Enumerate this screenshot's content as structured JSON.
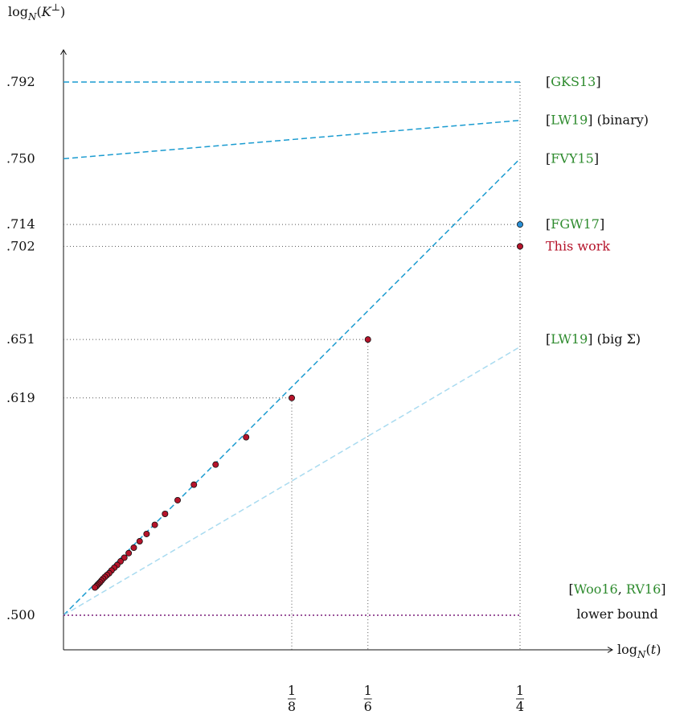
{
  "chart_data": {
    "type": "line",
    "ylabel": "log_N(K⊥)",
    "xlabel": "log_N(t)",
    "ylim": [
      0.5,
      0.792
    ],
    "xlim": [
      0,
      0.25
    ],
    "y_ticks": [
      ".792",
      ".750",
      ".714",
      ".702",
      ".651",
      ".619",
      ".500"
    ],
    "x_ticks": [
      {
        "value": 0.125,
        "num": "1",
        "den": "8"
      },
      {
        "value": 0.1667,
        "num": "1",
        "den": "6"
      },
      {
        "value": 0.25,
        "num": "1",
        "den": "4"
      }
    ],
    "series": [
      {
        "label": "[GKS13]",
        "kind": "dashed",
        "color": "#1a9bd0",
        "x": [
          0,
          0.25
        ],
        "y": [
          0.792,
          0.792
        ]
      },
      {
        "label": "[LW19]",
        "label_suffix": " (binary)",
        "kind": "dashed",
        "color": "#1a9bd0",
        "x": [
          0,
          0.25
        ],
        "y": [
          0.75,
          0.771
        ]
      },
      {
        "label": "[FVY15]",
        "kind": "dashed",
        "color": "#1a9bd0",
        "x": [
          0,
          0.25
        ],
        "y": [
          0.5,
          0.75
        ]
      },
      {
        "label": "[LW19]",
        "label_suffix": " (big Σ)",
        "kind": "dashed",
        "color": "#a9dbf0",
        "x": [
          0,
          0.25
        ],
        "y": [
          0.5,
          0.647
        ]
      },
      {
        "label": "[Woo16, RV16]",
        "label_line2": "lower bound",
        "kind": "dotted",
        "color": "#7a1f7a",
        "x": [
          0,
          0.25
        ],
        "y": [
          0.5,
          0.5
        ]
      }
    ],
    "points": [
      {
        "label": "[FGW17]",
        "color": "#2a8fd6",
        "x": [
          0.25
        ],
        "y": [
          0.714
        ]
      },
      {
        "label": "This work",
        "color": "#b5142b",
        "x": [
          0.25,
          0.1667,
          0.125,
          0.1,
          0.0833,
          0.0714,
          0.0625,
          0.0556,
          0.05,
          0.0455,
          0.0417,
          0.0385,
          0.0357,
          0.0333,
          0.03125,
          0.0294,
          0.0278,
          0.0263,
          0.025,
          0.0238,
          0.0227,
          0.0217,
          0.0208,
          0.02,
          0.0192,
          0.0185,
          0.0179,
          0.0172
        ],
        "y": [
          0.702,
          0.651,
          0.619,
          0.5975,
          0.5825,
          0.5715,
          0.563,
          0.5555,
          0.5495,
          0.5445,
          0.5405,
          0.537,
          0.534,
          0.5315,
          0.5295,
          0.5275,
          0.526,
          0.5245,
          0.523,
          0.522,
          0.521,
          0.52,
          0.519,
          0.518,
          0.5172,
          0.5165,
          0.5158,
          0.5152
        ]
      }
    ],
    "grid": false
  }
}
